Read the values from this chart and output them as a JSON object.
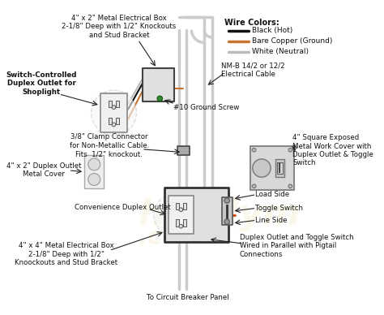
{
  "bg_color": "#ffffff",
  "wire_colors": {
    "black": "#111111",
    "copper": "#c87530",
    "white": "#bbbbbb",
    "gray": "#999999",
    "light_gray": "#cccccc"
  },
  "legend": {
    "title": "Wire Colors:",
    "items": [
      {
        "label": "Black (Hot)",
        "color": "#111111"
      },
      {
        "label": "Bare Copper (Ground)",
        "color": "#c87530"
      },
      {
        "label": "White (Neutral)",
        "color": "#bbbbbb"
      }
    ]
  },
  "labels": {
    "top_box": "4\" x 2\" Metal Electrical Box\n2-1/8\" Deep with 1/2\" Knockouts\nand Stud Bracket",
    "shoplight": "Switch-Controlled\nDuplex Outlet for\nShoplight",
    "ground_screw": "#10 Ground Screw",
    "cover": "4\" x 2\" Duplex Outlet\nMetal Cover",
    "clamp": "3/8\" Clamp Connector\nfor Non-Metallic Cable.\nFits  1/2\" knockout.",
    "convenience": "Convenience Duplex Outlet",
    "bottom_box": "4\" x 4\" Metal Electrical Box\n2-1/8\" Deep with 1/2\"\nKnoockouts and Stud Bracket",
    "circuit": "To Circuit Breaker Panel",
    "nm_cable": "NM-B 14/2 or 12/2\nElectrical Cable",
    "square_cover": "4\" Square Exposed\nMetal Work Cover with\nDuplex Outlet & Toggle\nSwitch",
    "load_side": "Load Side",
    "toggle": "Toggle Switch",
    "line_side": "Line Side",
    "parallel": "Duplex Outlet and Toggle Switch\nWired in Parallel with Pigtail\nConnections"
  },
  "watermark": "handym",
  "watermark2": ".com"
}
